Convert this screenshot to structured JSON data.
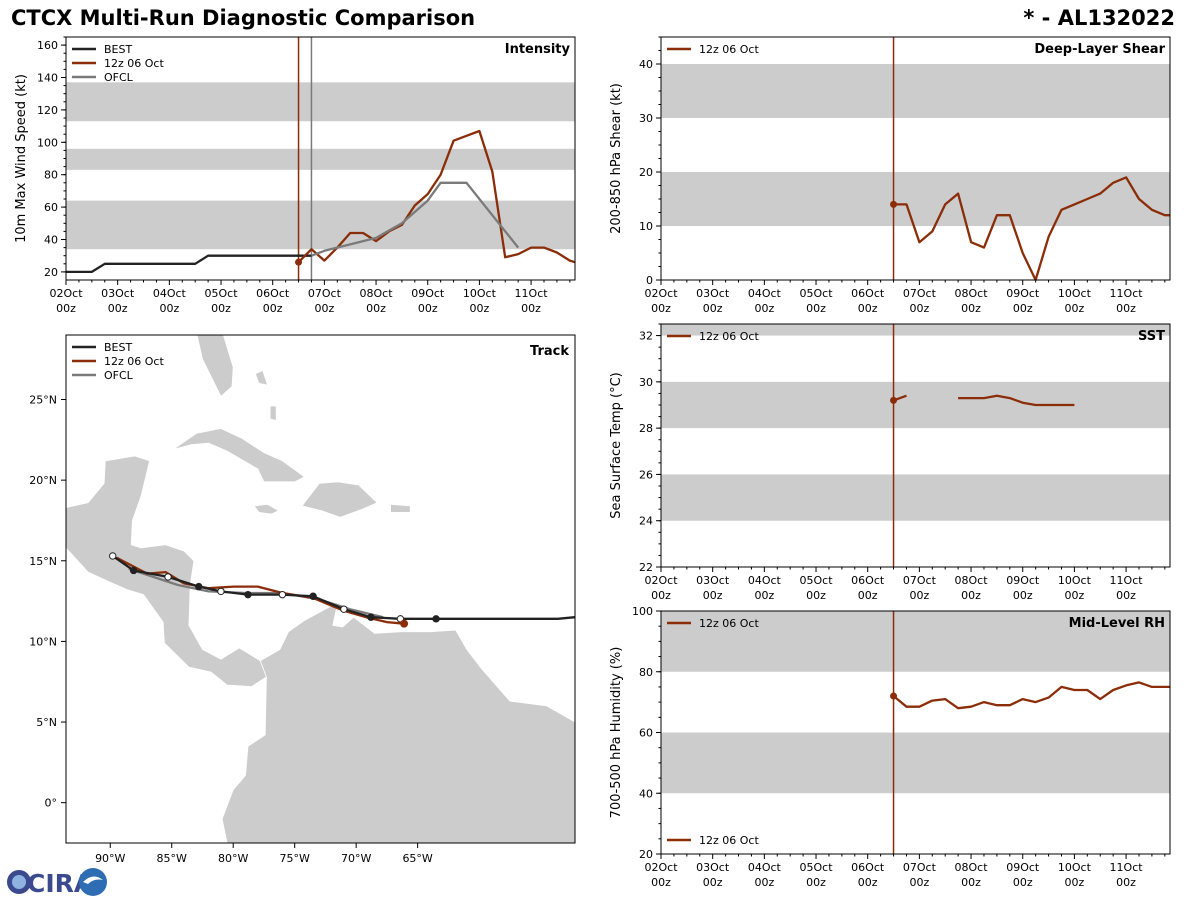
{
  "header": {
    "title": "CTCX Multi-Run Diagnostic Comparison",
    "storm": "* - AL132022"
  },
  "colors": {
    "best": "#222222",
    "run": "#8b2d08",
    "ofcl": "#7a7a7a",
    "band": "#cccccc",
    "land": "#cccccc"
  },
  "logo": {
    "text": "CIRA"
  },
  "time_axis": {
    "range": [
      0,
      9.85
    ],
    "ticks": [
      {
        "t": 0,
        "l1": "02Oct",
        "l2": "00z"
      },
      {
        "t": 1,
        "l1": "03Oct",
        "l2": "00z"
      },
      {
        "t": 2,
        "l1": "04Oct",
        "l2": "00z"
      },
      {
        "t": 3,
        "l1": "05Oct",
        "l2": "00z"
      },
      {
        "t": 4,
        "l1": "06Oct",
        "l2": "00z"
      },
      {
        "t": 5,
        "l1": "07Oct",
        "l2": "00z"
      },
      {
        "t": 6,
        "l1": "08Oct",
        "l2": "00z"
      },
      {
        "t": 7,
        "l1": "09Oct",
        "l2": "00z"
      },
      {
        "t": 8,
        "l1": "10Oct",
        "l2": "00z"
      },
      {
        "t": 9,
        "l1": "11Oct",
        "l2": "00z"
      }
    ]
  },
  "chart_data": [
    {
      "id": "intensity",
      "type": "line",
      "title": "Intensity",
      "ylabel": "10m Max Wind Speed (kt)",
      "ylim": [
        15,
        165
      ],
      "yticks": [
        20,
        40,
        60,
        80,
        100,
        120,
        140,
        160
      ],
      "bands": [
        [
          34,
          64
        ],
        [
          83,
          96
        ],
        [
          113,
          137
        ]
      ],
      "vlines": [
        {
          "t": 4.5,
          "series": "run"
        },
        {
          "t": 4.75,
          "series": "ofcl"
        }
      ],
      "legend": [
        {
          "label": "BEST",
          "color_key": "best"
        },
        {
          "label": "12z 06 Oct",
          "color_key": "run"
        },
        {
          "label": "OFCL",
          "color_key": "ofcl"
        }
      ],
      "series": [
        {
          "name": "BEST",
          "color_key": "best",
          "t": [
            0,
            0.25,
            0.5,
            0.75,
            1,
            1.25,
            1.5,
            1.75,
            2,
            2.25,
            2.5,
            2.75,
            3,
            3.25,
            3.5,
            3.75,
            4,
            4.25,
            4.5,
            4.75
          ],
          "y": [
            20,
            20,
            20,
            25,
            25,
            25,
            25,
            25,
            25,
            25,
            25,
            30,
            30,
            30,
            30,
            30,
            30,
            30,
            30,
            30
          ]
        },
        {
          "name": "12z 06 Oct",
          "color_key": "run",
          "marker_first": true,
          "t": [
            4.5,
            4.75,
            5,
            5.25,
            5.5,
            5.75,
            6,
            6.25,
            6.5,
            6.75,
            7,
            7.25,
            7.5,
            7.75,
            8,
            8.25,
            8.5,
            8.75,
            9,
            9.25,
            9.5,
            9.75,
            9.85
          ],
          "y": [
            26,
            34,
            27,
            35,
            44,
            44,
            39,
            45,
            49,
            61,
            68,
            80,
            101,
            104,
            107,
            82,
            29,
            31,
            35,
            35,
            32,
            27,
            26
          ]
        },
        {
          "name": "OFCL",
          "color_key": "ofcl",
          "t": [
            4.75,
            5,
            5.5,
            6,
            6.5,
            7,
            7.25,
            7.75,
            8.25,
            8.75
          ],
          "y": [
            30,
            33,
            37,
            41,
            50,
            64,
            75,
            75,
            55,
            35
          ]
        }
      ]
    },
    {
      "id": "shear",
      "type": "line",
      "title": "Deep-Layer Shear",
      "ylabel": "200-850 hPa Shear (kt)",
      "ylim": [
        0,
        45
      ],
      "yticks": [
        0,
        10,
        20,
        30,
        40
      ],
      "bands": [
        [
          10,
          20
        ],
        [
          30,
          40
        ]
      ],
      "vlines": [
        {
          "t": 4.5,
          "series": "run"
        }
      ],
      "legend": [
        {
          "label": "12z 06 Oct",
          "color_key": "run"
        }
      ],
      "series": [
        {
          "name": "12z 06 Oct",
          "color_key": "run",
          "marker_first": true,
          "t": [
            4.5,
            4.75,
            5,
            5.25,
            5.5,
            5.75,
            6,
            6.25,
            6.5,
            6.75,
            7,
            7.25,
            7.5,
            7.75,
            8,
            8.25,
            8.5,
            8.75,
            9,
            9.25,
            9.5,
            9.75,
            9.85
          ],
          "y": [
            14,
            14,
            7,
            9,
            14,
            16,
            7,
            6,
            12,
            12,
            5,
            0,
            8,
            13,
            14,
            15,
            16,
            18,
            19,
            15,
            13,
            12,
            12
          ]
        }
      ]
    },
    {
      "id": "sst",
      "type": "line",
      "title": "SST",
      "ylabel": "Sea Surface Temp (°C)",
      "ylim": [
        22,
        32.5
      ],
      "yticks": [
        22,
        24,
        26,
        28,
        30,
        32
      ],
      "bands": [
        [
          24,
          26
        ],
        [
          28,
          30
        ],
        [
          32,
          32.5
        ]
      ],
      "vlines": [
        {
          "t": 4.5,
          "series": "run"
        }
      ],
      "legend": [
        {
          "label": "12z 06 Oct",
          "color_key": "run"
        }
      ],
      "series": [
        {
          "name": "12z 06 Oct",
          "color_key": "run",
          "marker_first": true,
          "t": [
            4.5,
            4.75,
            null,
            5.75,
            6,
            6.25,
            6.5,
            6.75,
            7,
            7.25,
            7.5,
            7.75,
            8
          ],
          "y": [
            29.2,
            29.4,
            null,
            29.3,
            29.3,
            29.3,
            29.4,
            29.3,
            29.1,
            29.0,
            29.0,
            29.0,
            29.0
          ]
        }
      ]
    },
    {
      "id": "rh",
      "type": "line",
      "title": "Mid-Level RH",
      "ylabel": "700-500 hPa Humidity (%)",
      "ylim": [
        20,
        100
      ],
      "yticks": [
        20,
        40,
        60,
        80,
        100
      ],
      "bands": [
        [
          40,
          60
        ],
        [
          80,
          100
        ]
      ],
      "vlines": [
        {
          "t": 4.5,
          "series": "run"
        }
      ],
      "legend": [
        {
          "label": "12z 06 Oct",
          "color_key": "run"
        }
      ],
      "series": [
        {
          "name": "12z 06 Oct",
          "color_key": "run",
          "marker_first": true,
          "t": [
            4.5,
            4.75,
            5,
            5.25,
            5.5,
            5.75,
            6,
            6.25,
            6.5,
            6.75,
            7,
            7.25,
            7.5,
            7.75,
            8,
            8.25,
            8.5,
            8.75,
            9,
            9.25,
            9.5,
            9.75,
            9.85
          ],
          "y": [
            72,
            68.5,
            68.5,
            70.5,
            71,
            68,
            68.5,
            70,
            69,
            69,
            71,
            70,
            71.5,
            75,
            74,
            74,
            71,
            74,
            75.5,
            76.5,
            75,
            75,
            75
          ]
        }
      ]
    },
    {
      "id": "track",
      "type": "scatter",
      "title": "Track",
      "xlim": [
        -93.6,
        -52.2
      ],
      "ylim": [
        -2.5,
        29
      ],
      "xticks": [
        {
          "v": -90,
          "label": "90°W"
        },
        {
          "v": -85,
          "label": "85°W"
        },
        {
          "v": -80,
          "label": "80°W"
        },
        {
          "v": -75,
          "label": "75°W"
        },
        {
          "v": -70,
          "label": "70°W"
        },
        {
          "v": -65,
          "label": "65°W"
        }
      ],
      "yticks": [
        {
          "v": 0,
          "label": "0°"
        },
        {
          "v": 5,
          "label": "5°N"
        },
        {
          "v": 10,
          "label": "10°N"
        },
        {
          "v": 15,
          "label": "15°N"
        },
        {
          "v": 20,
          "label": "20°N"
        },
        {
          "v": 25,
          "label": "25°N"
        }
      ],
      "legend": [
        {
          "label": "BEST",
          "color_key": "best"
        },
        {
          "label": "12z 06 Oct",
          "color_key": "run"
        },
        {
          "label": "OFCL",
          "color_key": "ofcl"
        }
      ],
      "series": [
        {
          "name": "BEST",
          "color_key": "best",
          "lon": [
            -52.2,
            -53.6,
            -56.2,
            -58.8,
            -61.4,
            -63.5,
            -66.4,
            -68.8,
            -71.0,
            -73.5,
            -76.0,
            -78.8,
            -81.0,
            -82.8,
            -85.3,
            -88.1,
            -89.8
          ],
          "lat": [
            11.5,
            11.4,
            11.4,
            11.4,
            11.4,
            11.4,
            11.4,
            11.5,
            12.0,
            12.8,
            12.9,
            12.9,
            13.1,
            13.4,
            14.0,
            14.4,
            15.3
          ],
          "filled": [
            -63.5,
            -68.8,
            -73.5,
            -78.8,
            -82.8,
            -88.1
          ],
          "open": [
            -66.4,
            -71.0,
            -76.0,
            -81.0,
            -85.3,
            -89.8
          ]
        },
        {
          "name": "12z 06 Oct",
          "color_key": "run",
          "lon": [
            -66.1,
            -67.5,
            -69.2,
            -71.0,
            -73.5,
            -76.0,
            -78.0,
            -80.0,
            -82.0,
            -84.0,
            -85.5,
            -87.0,
            -88.5,
            -89.5
          ],
          "lat": [
            11.1,
            11.2,
            11.5,
            11.9,
            12.7,
            13.0,
            13.4,
            13.4,
            13.3,
            13.6,
            14.3,
            14.2,
            14.8,
            15.2
          ],
          "end_marker": {
            "lon": -66.1,
            "lat": 11.1
          }
        },
        {
          "name": "OFCL",
          "color_key": "ofcl",
          "lon": [
            -67.8,
            -70.5,
            -73.0,
            -76.0,
            -79.0,
            -82.0,
            -84.5,
            -86.5,
            -88.5
          ],
          "lat": [
            11.5,
            12.0,
            12.6,
            13.0,
            13.0,
            13.1,
            13.5,
            14.0,
            14.5
          ]
        }
      ]
    }
  ]
}
